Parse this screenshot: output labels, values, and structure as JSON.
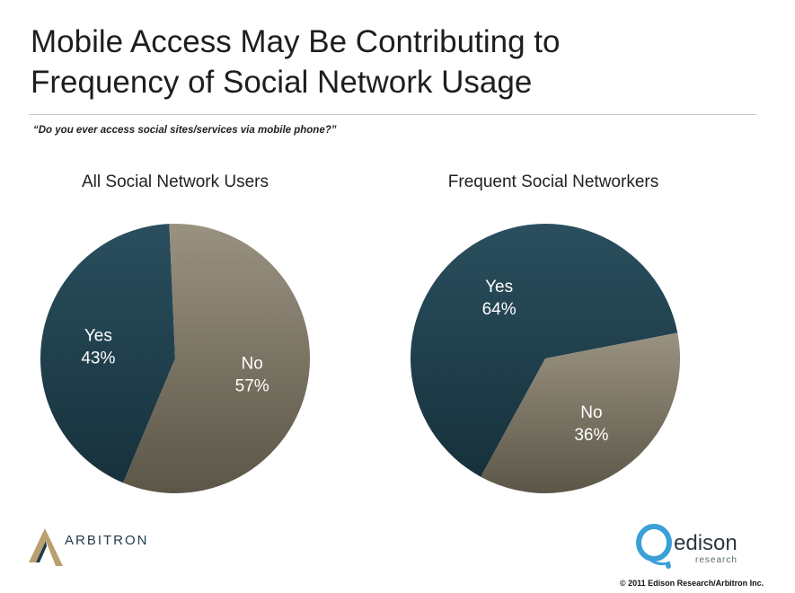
{
  "header": {
    "title_line1": "Mobile Access May Be Contributing to",
    "title_line2": "Frequency of Social Network Usage",
    "question": "“Do you ever access social sites/services via mobile phone?”"
  },
  "colors": {
    "yes": "#2a4f5e",
    "no": "#9a9281",
    "label": "#ffffff"
  },
  "chart_data": [
    {
      "type": "pie",
      "title": "All Social Network Users",
      "categories": [
        "Yes",
        "No"
      ],
      "values": [
        43,
        57
      ],
      "labels": [
        "43%",
        "57%"
      ]
    },
    {
      "type": "pie",
      "title": "Frequent Social Networkers",
      "categories": [
        "Yes",
        "No"
      ],
      "values": [
        64,
        36
      ],
      "labels": [
        "64%",
        "36%"
      ]
    }
  ],
  "footer": {
    "arbitron_logo_text": "ARBITRON",
    "edison_logo_text": "edison",
    "edison_logo_subtext": "research",
    "copyright": "© 2011 Edison Research/Arbitron Inc."
  }
}
